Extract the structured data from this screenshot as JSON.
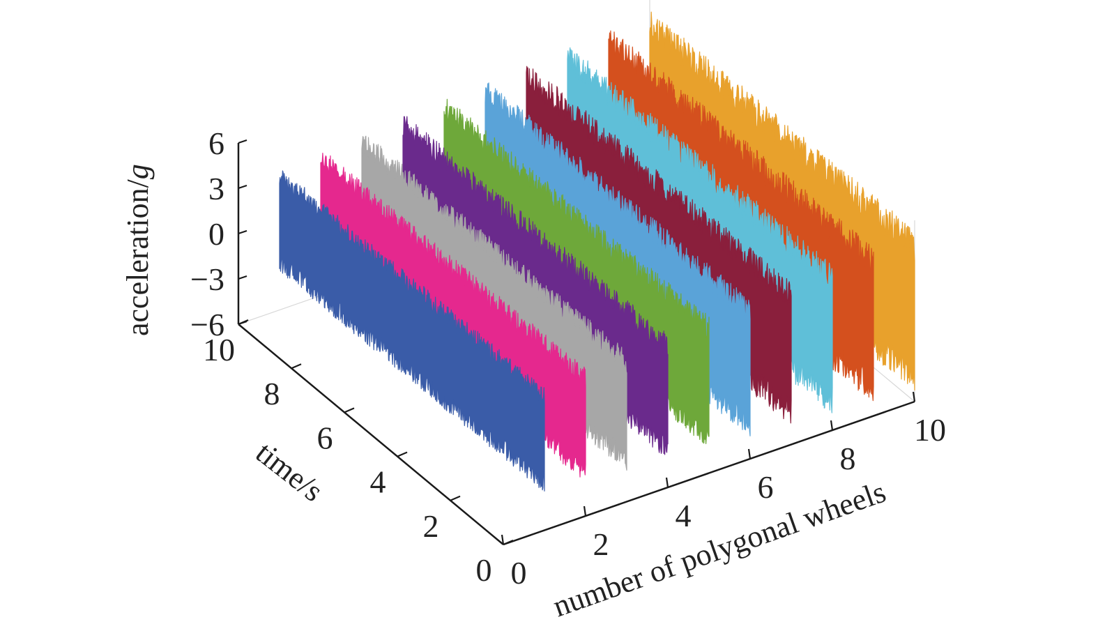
{
  "chart_data": {
    "type": "waterfall-3d",
    "x_axis": {
      "label": "number of polygonal wheels",
      "range": [
        0,
        10
      ],
      "ticks": [
        "0",
        "2",
        "4",
        "6",
        "8",
        "10"
      ]
    },
    "y_axis": {
      "label": "time/s",
      "range": [
        0,
        10
      ],
      "ticks": [
        "0",
        "2",
        "4",
        "6",
        "8",
        "10"
      ]
    },
    "z_axis": {
      "label_prefix": "acceleration/",
      "label_italic": "g",
      "range": [
        -6,
        6
      ],
      "ticks": [
        "−6",
        "−3",
        "0",
        "3",
        "6"
      ]
    },
    "grid": true,
    "series": [
      {
        "wheels": 1,
        "time_range": [
          0,
          10
        ],
        "acceleration_range": [
          -3.5,
          3.5
        ],
        "color": "#3a5ca8"
      },
      {
        "wheels": 2,
        "time_range": [
          0,
          10
        ],
        "acceleration_range": [
          -3.8,
          3.8
        ],
        "color": "#e5288e"
      },
      {
        "wheels": 3,
        "time_range": [
          0,
          10
        ],
        "acceleration_range": [
          -4.0,
          4.0
        ],
        "color": "#a7a7a7"
      },
      {
        "wheels": 4,
        "time_range": [
          0,
          10
        ],
        "acceleration_range": [
          -4.2,
          4.2
        ],
        "color": "#6a2a8c"
      },
      {
        "wheels": 5,
        "time_range": [
          0,
          10
        ],
        "acceleration_range": [
          -4.4,
          4.4
        ],
        "color": "#6ea83a"
      },
      {
        "wheels": 6,
        "time_range": [
          0,
          10
        ],
        "acceleration_range": [
          -4.6,
          4.6
        ],
        "color": "#5aa3d8"
      },
      {
        "wheels": 7,
        "time_range": [
          0,
          10
        ],
        "acceleration_range": [
          -4.8,
          4.8
        ],
        "color": "#8a1f3c"
      },
      {
        "wheels": 8,
        "time_range": [
          0,
          10
        ],
        "acceleration_range": [
          -5.0,
          5.0
        ],
        "color": "#5fbfd8"
      },
      {
        "wheels": 9,
        "time_range": [
          0,
          10
        ],
        "acceleration_range": [
          -5.2,
          5.2
        ],
        "color": "#d4501e"
      },
      {
        "wheels": 10,
        "time_range": [
          0,
          10
        ],
        "acceleration_range": [
          -5.4,
          5.4
        ],
        "color": "#e8a12c"
      }
    ]
  }
}
